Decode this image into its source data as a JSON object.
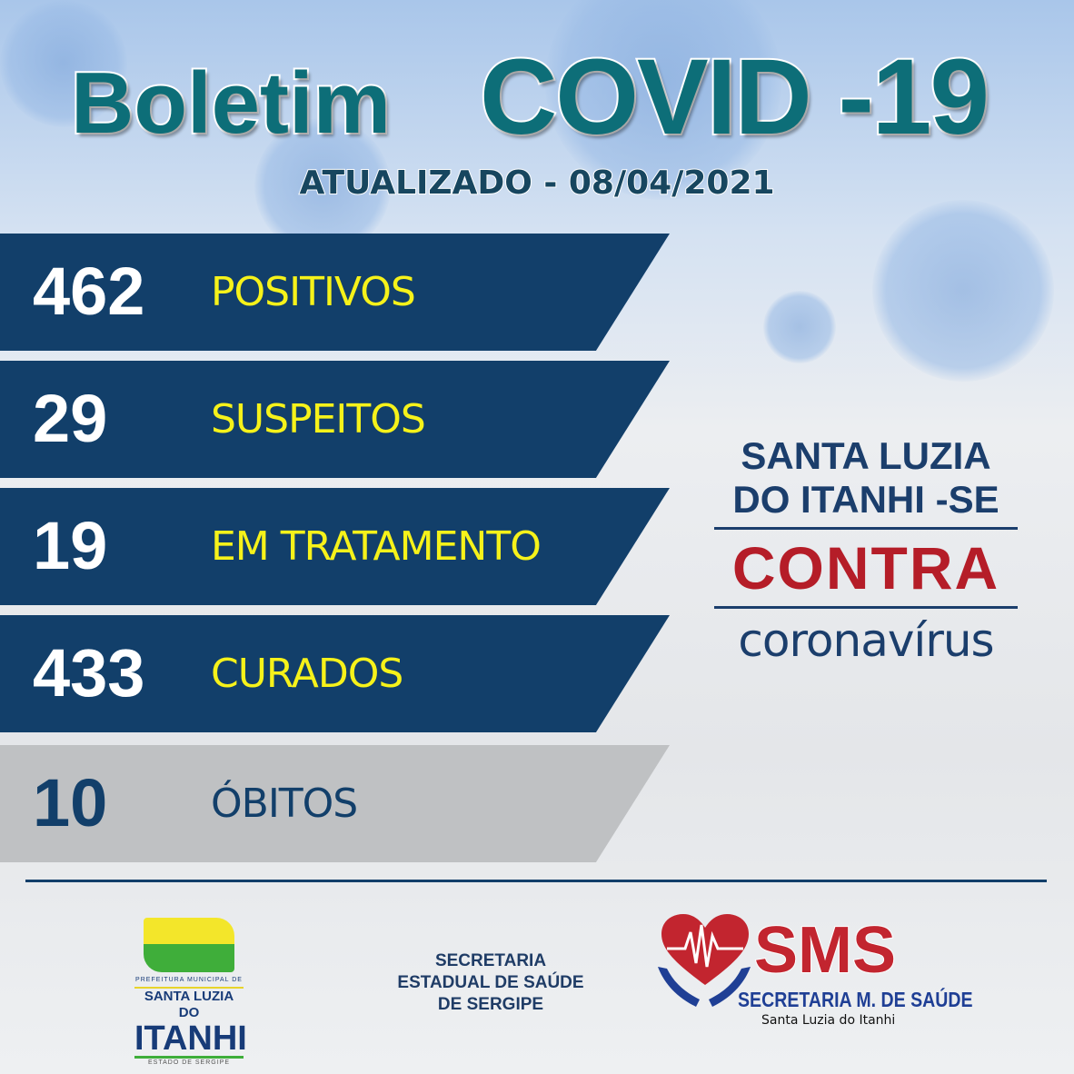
{
  "header": {
    "title_left": "Boletim",
    "title_right": "COVID -19",
    "updated": "ATUALIZADO - 08/04/2021"
  },
  "stats": [
    {
      "value": "462",
      "label": "POSITIVOS"
    },
    {
      "value": "29",
      "label": "SUSPEITOS"
    },
    {
      "value": "19",
      "label": "EM TRATAMENTO"
    },
    {
      "value": "433",
      "label": "CURADOS"
    },
    {
      "value": "10",
      "label": "ÓBITOS"
    }
  ],
  "slogan": {
    "line1": "SANTA LUZIA",
    "line2": "DO ITANHI -SE",
    "line3": "CONTRA",
    "line4": "coronavírus"
  },
  "footer": {
    "prefeitura": {
      "small": "PREFEITURA MUNICIPAL DE",
      "line1": "SANTA LUZIA DO",
      "line2": "ITANHI",
      "state": "ESTADO DE SERGIPE"
    },
    "secretaria_estadual": [
      "SECRETARIA",
      "ESTADUAL DE SAÚDE",
      "DE SERGIPE"
    ],
    "sms": {
      "acronym": "SMS",
      "name": "SECRETARIA M. DE SAÚDE",
      "city": "Santa Luzia do Itanhi"
    }
  },
  "colors": {
    "navy": "#123f6a",
    "yellow": "#f6f21a",
    "teal": "#0d6e78",
    "red": "#b51d28",
    "gray": "#bfc1c3"
  }
}
